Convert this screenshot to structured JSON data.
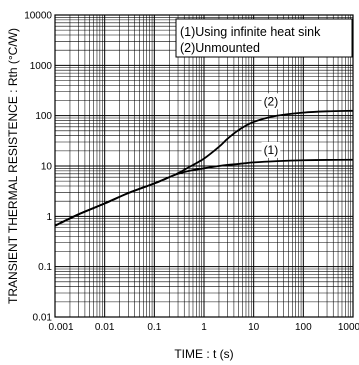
{
  "chart_data": {
    "type": "line",
    "xlabel": "TIME : t (s)",
    "ylabel": "TRANSIENT THERMAL RESISTENCE : Rth (°C/W)",
    "x_scale": "log",
    "y_scale": "log",
    "xlim": [
      0.001,
      1000
    ],
    "ylim": [
      0.01,
      10000
    ],
    "grid": true,
    "x_ticks": [
      "0.001",
      "0.01",
      "0.1",
      "1",
      "10",
      "100",
      "1000"
    ],
    "y_ticks": [
      "0.01",
      "0.1",
      "1",
      "10",
      "100",
      "1000",
      "10000"
    ],
    "legend_position": "top-right",
    "legend": [
      "(1)Using infinite heat sink",
      "(2)Unmounted"
    ],
    "series": [
      {
        "name": "(1)",
        "x": [
          0.001,
          0.003,
          0.01,
          0.03,
          0.1,
          0.2,
          0.3,
          0.5,
          1,
          2,
          3,
          5,
          10,
          30,
          100,
          300,
          1000
        ],
        "y": [
          0.65,
          1.1,
          1.8,
          2.9,
          4.5,
          6.0,
          7.0,
          8.0,
          9.0,
          10.0,
          10.5,
          11.0,
          11.8,
          12.5,
          13.0,
          13.2,
          13.3
        ]
      },
      {
        "name": "(2)",
        "x": [
          0.001,
          0.003,
          0.01,
          0.03,
          0.1,
          0.2,
          0.3,
          0.5,
          1,
          2,
          3,
          5,
          10,
          30,
          100,
          300,
          1000
        ],
        "y": [
          0.65,
          1.1,
          1.8,
          2.9,
          4.5,
          6.0,
          7.2,
          9.5,
          14,
          24,
          35,
          52,
          75,
          100,
          115,
          122,
          125
        ]
      }
    ]
  }
}
